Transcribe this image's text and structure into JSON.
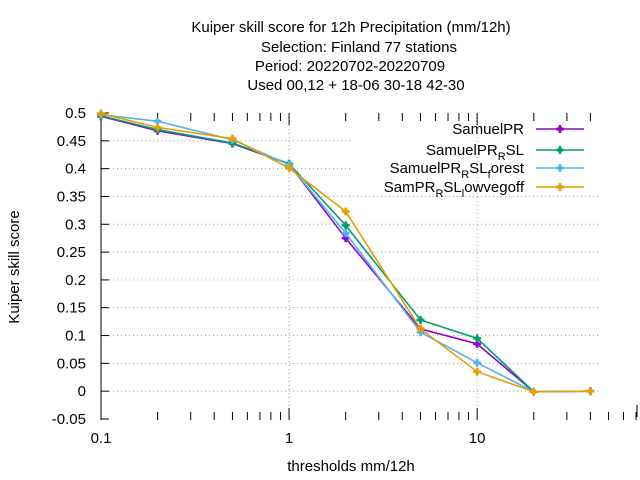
{
  "chart_data": {
    "type": "line",
    "title_lines": [
      "Kuiper skill score  for 12h Precipitation (mm/12h)",
      "Selection: Finland     77 stations",
      "Period: 20220702-20220709",
      "Used  00,12  + 18-06 30-18 42-30"
    ],
    "xlabel": "thresholds mm/12h",
    "ylabel": "Kuiper skill score",
    "x_scale": "log",
    "xlim": [
      0.1,
      45
    ],
    "ylim": [
      -0.05,
      0.5
    ],
    "x_tick_labels": [
      {
        "value": 0.1,
        "label": "0.1"
      },
      {
        "value": 1,
        "label": "1"
      },
      {
        "value": 10,
        "label": "10"
      }
    ],
    "y_ticks": [
      {
        "value": 0.5,
        "label": "0.5"
      },
      {
        "value": 0.45,
        "label": "0.45"
      },
      {
        "value": 0.4,
        "label": "0.4"
      },
      {
        "value": 0.35,
        "label": "0.35"
      },
      {
        "value": 0.3,
        "label": "0.3"
      },
      {
        "value": 0.25,
        "label": "0.25"
      },
      {
        "value": 0.2,
        "label": "0.2"
      },
      {
        "value": 0.15,
        "label": "0.15"
      },
      {
        "value": 0.1,
        "label": "0.1"
      },
      {
        "value": 0.05,
        "label": "0.05"
      },
      {
        "value": 0,
        "label": "0"
      },
      {
        "value": -0.05,
        "label": "-0.05"
      }
    ],
    "grid": true,
    "legend_position": "top-right",
    "x": [
      0.1,
      0.2,
      0.5,
      1,
      2,
      5,
      10,
      20,
      40
    ],
    "series": [
      {
        "name": "SamuelPR",
        "legend": {
          "base": "SamuelPR",
          "sub": "",
          "tail": ""
        },
        "color": "#9400d3",
        "values": [
          0.494,
          0.468,
          0.445,
          0.408,
          0.275,
          0.112,
          0.085,
          -0.001,
          0.0
        ]
      },
      {
        "name": "SamuelPR_R SL",
        "legend": {
          "base": "SamuelPR",
          "sub": "R",
          "tail": "SL"
        },
        "color": "#009e73",
        "values": [
          0.495,
          0.47,
          0.446,
          0.409,
          0.298,
          0.128,
          0.095,
          -0.001,
          0.0
        ]
      },
      {
        "name": "SamuelPR_R SL_forest",
        "legend": {
          "base": "SamuelPR",
          "sub": "R",
          "tail": "SL",
          "sub2": "f",
          "tail2": "orest"
        },
        "color": "#56b4e9",
        "values": [
          0.497,
          0.485,
          0.452,
          0.407,
          0.284,
          0.106,
          0.051,
          -0.001,
          0.0
        ]
      },
      {
        "name": "SamPR_R SL_lowvegoff",
        "legend": {
          "base": "SamPR",
          "sub": "R",
          "tail": "SL",
          "sub2": "l",
          "tail2": "owvegoff"
        },
        "color": "#e69f00",
        "values": [
          0.499,
          0.474,
          0.454,
          0.401,
          0.323,
          0.112,
          0.035,
          -0.001,
          0.0
        ]
      }
    ]
  }
}
